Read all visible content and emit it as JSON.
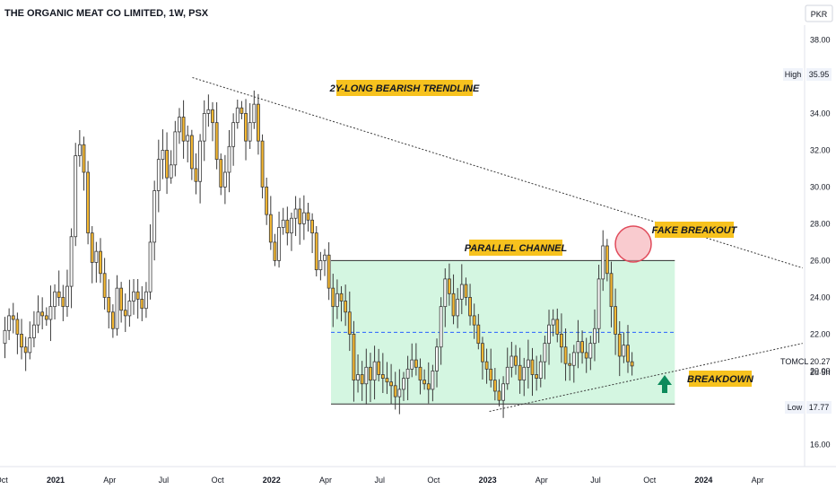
{
  "header": {
    "symbol_title": "THE ORGANIC MEAT CO LIMITED, 1W, PSX",
    "currency": "PKR"
  },
  "chart_data": {
    "type": "candlestick",
    "timeframe": "1W",
    "price_axis": {
      "ticks": [
        "38.00",
        "36.00",
        "34.00",
        "32.00",
        "30.00",
        "28.00",
        "26.00",
        "24.00",
        "22.00",
        "20.00",
        "18.00",
        "16.00"
      ],
      "ylim": [
        14.8,
        38.8
      ]
    },
    "time_axis": {
      "ticks": [
        {
          "label": "Oct",
          "month": -3
        },
        {
          "label": "2021",
          "month": 0,
          "bold": true
        },
        {
          "label": "Apr",
          "month": 3
        },
        {
          "label": "Jul",
          "month": 6
        },
        {
          "label": "Oct",
          "month": 9
        },
        {
          "label": "2022",
          "month": 12,
          "bold": true
        },
        {
          "label": "Apr",
          "month": 15
        },
        {
          "label": "Jul",
          "month": 18
        },
        {
          "label": "Oct",
          "month": 21
        },
        {
          "label": "2023",
          "month": 24,
          "bold": true
        },
        {
          "label": "Apr",
          "month": 27
        },
        {
          "label": "Jul",
          "month": 30
        },
        {
          "label": "Oct",
          "month": 33
        },
        {
          "label": "2024",
          "month": 36,
          "bold": true
        },
        {
          "label": "Apr",
          "month": 39
        }
      ],
      "note": "month index counted from Jan 2021"
    },
    "markers": {
      "high": {
        "label": "High",
        "value": "35.95"
      },
      "low": {
        "label": "Low",
        "value": "17.77"
      },
      "last": {
        "label": "TOMCL",
        "value": "20.27",
        "countdown": "2d 5h"
      }
    },
    "trendlines": [
      {
        "name": "bearish-trendline",
        "from": {
          "month": 7.6,
          "price": 35.95
        },
        "to": {
          "month": 41.5,
          "price": 25.6
        }
      },
      {
        "name": "support-trendline",
        "from": {
          "month": 24.1,
          "price": 17.8
        },
        "to": {
          "month": 41.5,
          "price": 21.5
        }
      }
    ],
    "channel": {
      "top": 26.0,
      "bottom": 18.2,
      "mid": 22.1,
      "from_month": 15.3,
      "to_month": 34.4
    },
    "annotations": [
      {
        "text": "2Y-LONG BEARISH TRENDLINE"
      },
      {
        "text": "PARALLEL CHANNEL"
      },
      {
        "text": "FAKE BREAKOUT"
      },
      {
        "text": "BREAKDOWN"
      }
    ],
    "close_series": [
      21.5,
      22.2,
      23.0,
      22.8,
      22.0,
      21.3,
      21.0,
      21.8,
      22.5,
      23.2,
      23.0,
      22.8,
      23.5,
      24.3,
      24.0,
      23.5,
      24.6,
      27.3,
      31.7,
      32.3,
      30.8,
      27.5,
      25.9,
      26.5,
      25.3,
      24.0,
      23.2,
      22.3,
      24.5,
      23.3,
      23.0,
      23.8,
      24.3,
      23.9,
      23.4,
      24.3,
      27.0,
      29.8,
      31.5,
      32.0,
      30.5,
      31.2,
      33.0,
      33.8,
      32.5,
      32.8,
      31.0,
      30.3,
      32.5,
      34.0,
      34.2,
      33.5,
      31.5,
      30.0,
      30.8,
      32.2,
      33.5,
      34.3,
      34.0,
      32.5,
      33.5,
      34.5,
      32.5,
      30.0,
      28.5,
      27.0,
      26.0,
      27.8,
      28.2,
      27.5,
      28.3,
      28.8,
      28.0,
      28.6,
      28.2,
      27.5,
      25.5,
      26.0,
      26.3,
      24.5,
      23.5,
      24.2,
      23.8,
      23.2,
      22.0,
      19.5,
      19.8,
      19.3,
      20.2,
      19.5,
      20.5,
      19.8,
      19.6,
      19.4,
      19.2,
      18.6,
      19.0,
      19.6,
      20.1,
      20.6,
      20.2,
      19.5,
      19.3,
      19.0,
      20.0,
      21.3,
      23.5,
      25.0,
      24.2,
      23.0,
      23.9,
      24.7,
      24.0,
      23.0,
      22.5,
      21.5,
      20.5,
      20.1,
      19.5,
      18.9,
      18.4,
      19.3,
      20.2,
      20.8,
      20.3,
      19.5,
      20.2,
      20.6,
      19.8,
      19.6,
      20.5,
      21.5,
      22.5,
      22.8,
      22.0,
      21.3,
      20.4,
      20.3,
      21.0,
      21.6,
      21.0,
      20.7,
      21.5,
      22.3,
      25.0,
      26.8,
      25.3,
      23.5,
      22.0,
      20.8,
      21.4,
      20.5,
      20.27
    ]
  }
}
